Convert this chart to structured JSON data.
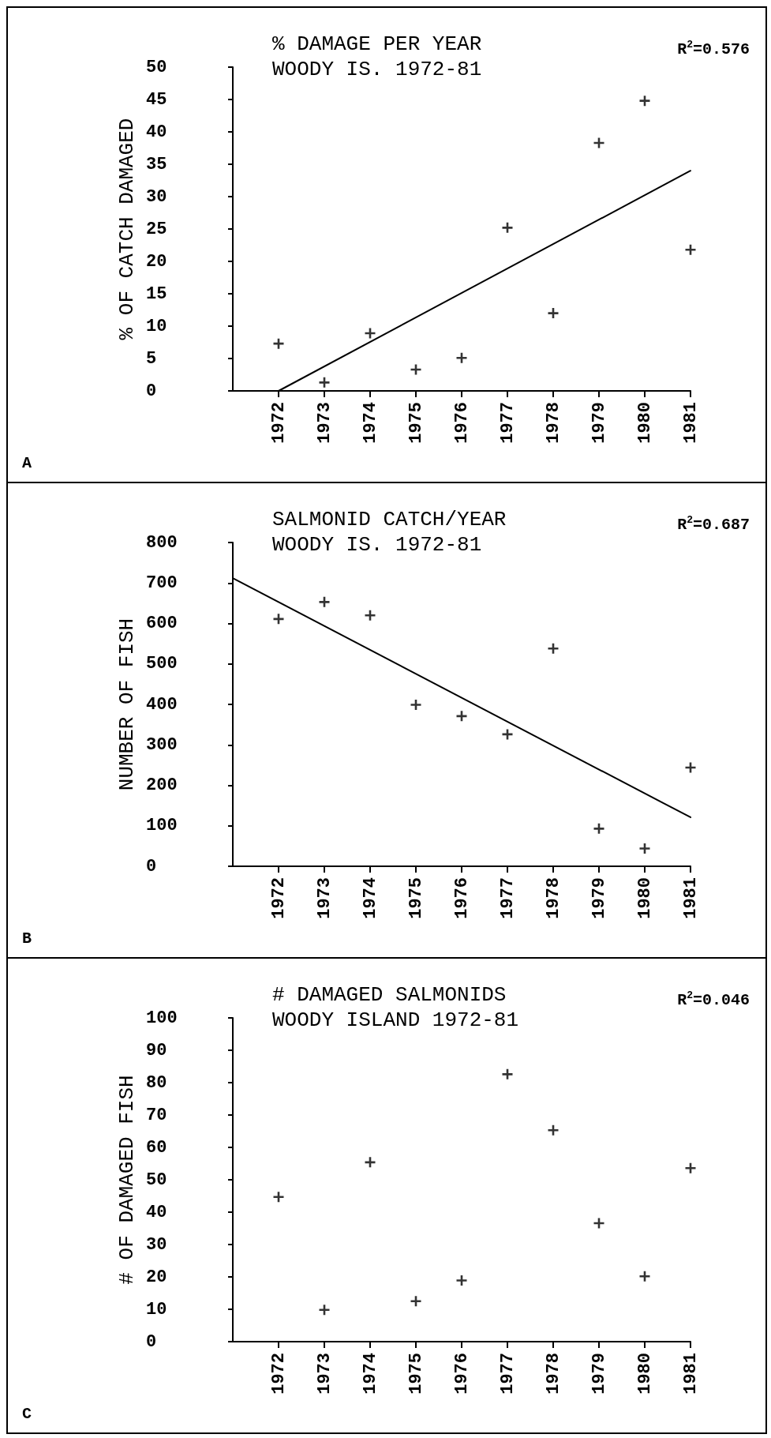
{
  "chart_data": [
    {
      "type": "scatter",
      "title": "% DAMAGE PER YEAR",
      "subtitle": "WOODY IS. 1972-81",
      "ylabel": "% OF CATCH DAMAGED",
      "xlim": [
        1971,
        1981
      ],
      "xticks": [
        1972,
        1973,
        1974,
        1975,
        1976,
        1977,
        1978,
        1979,
        1980,
        1981
      ],
      "ylim": [
        0,
        50
      ],
      "yticks": [
        0,
        5,
        10,
        15,
        20,
        25,
        30,
        35,
        40,
        45,
        50
      ],
      "grid": false,
      "marker": "cross",
      "annotations": [
        "R$^{2}$=0.576",
        "A"
      ],
      "series": [
        {
          "color": "#000000",
          "x": [
            1972,
            1973,
            1974,
            1975,
            1976,
            1977,
            1978,
            1979,
            1980,
            1981
          ],
          "values": [
            7.3,
            1.3,
            8.9,
            3.3,
            5.1,
            25.2,
            12.0,
            38.3,
            44.8,
            21.8
          ]
        },
        {
          "type": "line",
          "marker": "none",
          "color": "#000000",
          "x": [
            1972,
            1981
          ],
          "values": [
            0,
            34
          ]
        }
      ]
    },
    {
      "type": "scatter",
      "title": "SALMONID CATCH/YEAR",
      "subtitle": "WOODY IS. 1972-81",
      "ylabel": "NUMBER OF FISH",
      "xlim": [
        1971,
        1981
      ],
      "xticks": [
        1972,
        1973,
        1974,
        1975,
        1976,
        1977,
        1978,
        1979,
        1980,
        1981
      ],
      "ylim": [
        0,
        800
      ],
      "yticks": [
        0,
        100,
        200,
        300,
        400,
        500,
        600,
        700,
        800
      ],
      "grid": false,
      "marker": "cross",
      "annotations": [
        "R$^{2}$=0.687",
        "B"
      ],
      "series": [
        {
          "color": "#000000",
          "x": [
            1972,
            1973,
            1974,
            1975,
            1976,
            1977,
            1978,
            1979,
            1980,
            1981
          ],
          "values": [
            611,
            653,
            620,
            399,
            371,
            326,
            538,
            93,
            44,
            244
          ]
        },
        {
          "type": "line",
          "marker": "none",
          "color": "#000000",
          "x": [
            1971,
            1981
          ],
          "values": [
            712,
            121
          ]
        }
      ]
    },
    {
      "type": "scatter",
      "title": "# DAMAGED SALMONIDS",
      "subtitle": "WOODY ISLAND 1972-81",
      "ylabel": "# OF DAMAGED FISH",
      "xlim": [
        1971,
        1981
      ],
      "xticks": [
        1972,
        1973,
        1974,
        1975,
        1976,
        1977,
        1978,
        1979,
        1980,
        1981
      ],
      "ylim": [
        0,
        100
      ],
      "yticks": [
        0,
        10,
        20,
        30,
        40,
        50,
        60,
        70,
        80,
        90,
        100
      ],
      "grid": false,
      "marker": "cross",
      "annotations": [
        "R$^{2}$=0.046",
        "C"
      ],
      "series": [
        {
          "color": "#000000",
          "x": [
            1972,
            1973,
            1974,
            1975,
            1976,
            1977,
            1978,
            1979,
            1980,
            1981
          ],
          "values": [
            44.7,
            9.8,
            55.4,
            12.5,
            18.9,
            82.6,
            65.3,
            36.6,
            20.2,
            53.6
          ]
        }
      ]
    }
  ]
}
